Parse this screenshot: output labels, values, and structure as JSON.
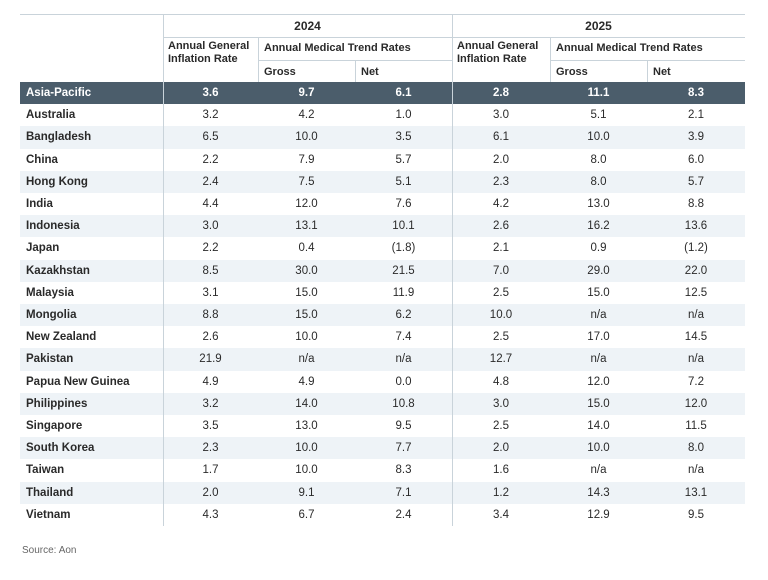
{
  "table": {
    "groups": [
      {
        "year": "2024",
        "general": "Annual General Inflation Rate",
        "medical": "Annual Medical Trend Rates",
        "gross": "Gross",
        "net": "Net"
      },
      {
        "year": "2025",
        "general": "Annual General Inflation Rate",
        "medical": "Annual Medical Trend Rates",
        "gross": "Gross",
        "net": "Net"
      }
    ],
    "rows": [
      [
        "Asia-Pacific",
        "3.6",
        "9.7",
        "6.1",
        "2.8",
        "11.1",
        "8.3"
      ],
      [
        "Australia",
        "3.2",
        "4.2",
        "1.0",
        "3.0",
        "5.1",
        "2.1"
      ],
      [
        "Bangladesh",
        "6.5",
        "10.0",
        "3.5",
        "6.1",
        "10.0",
        "3.9"
      ],
      [
        "China",
        "2.2",
        "7.9",
        "5.7",
        "2.0",
        "8.0",
        "6.0"
      ],
      [
        "Hong Kong",
        "2.4",
        "7.5",
        "5.1",
        "2.3",
        "8.0",
        "5.7"
      ],
      [
        "India",
        "4.4",
        "12.0",
        "7.6",
        "4.2",
        "13.0",
        "8.8"
      ],
      [
        "Indonesia",
        "3.0",
        "13.1",
        "10.1",
        "2.6",
        "16.2",
        "13.6"
      ],
      [
        "Japan",
        "2.2",
        "0.4",
        "(1.8)",
        "2.1",
        "0.9",
        "(1.2)"
      ],
      [
        "Kazakhstan",
        "8.5",
        "30.0",
        "21.5",
        "7.0",
        "29.0",
        "22.0"
      ],
      [
        "Malaysia",
        "3.1",
        "15.0",
        "11.9",
        "2.5",
        "15.0",
        "12.5"
      ],
      [
        "Mongolia",
        "8.8",
        "15.0",
        "6.2",
        "10.0",
        "n/a",
        "n/a"
      ],
      [
        "New Zealand",
        "2.6",
        "10.0",
        "7.4",
        "2.5",
        "17.0",
        "14.5"
      ],
      [
        "Pakistan",
        "21.9",
        "n/a",
        "n/a",
        "12.7",
        "n/a",
        "n/a"
      ],
      [
        "Papua New Guinea",
        "4.9",
        "4.9",
        "0.0",
        "4.8",
        "12.0",
        "7.2"
      ],
      [
        "Philippines",
        "3.2",
        "14.0",
        "10.8",
        "3.0",
        "15.0",
        "12.0"
      ],
      [
        "Singapore",
        "3.5",
        "13.0",
        "9.5",
        "2.5",
        "14.0",
        "11.5"
      ],
      [
        "South Korea",
        "2.3",
        "10.0",
        "7.7",
        "2.0",
        "10.0",
        "8.0"
      ],
      [
        "Taiwan",
        "1.7",
        "10.0",
        "8.3",
        "1.6",
        "n/a",
        "n/a"
      ],
      [
        "Thailand",
        "2.0",
        "9.1",
        "7.1",
        "1.2",
        "14.3",
        "13.1"
      ],
      [
        "Vietnam",
        "4.3",
        "6.7",
        "2.4",
        "3.4",
        "12.9",
        "9.5"
      ]
    ]
  },
  "source": "Source: Aon"
}
